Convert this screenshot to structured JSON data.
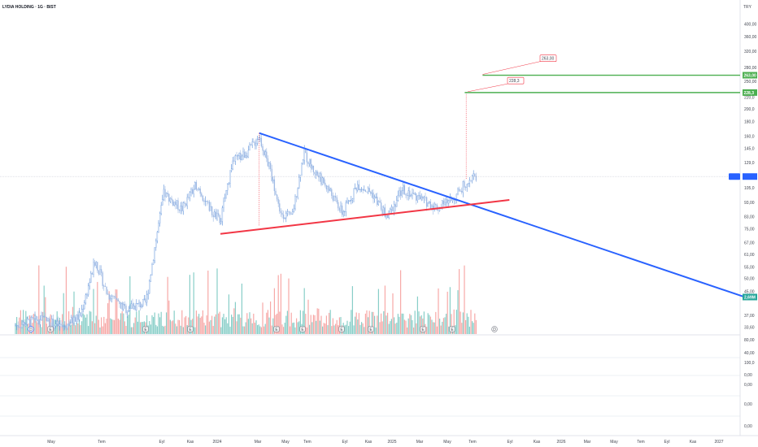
{
  "header": {
    "title": "LYDIA HOLDING · 1G · BIST",
    "currency": "TRY"
  },
  "chart_data": {
    "type": "candlestick",
    "title": "LYDIA HOLDING · 1G · BIST",
    "yscale": "log",
    "y_ticks": [
      "400,00",
      "360,00",
      "320,00",
      "280,00",
      "250,00",
      "220,0",
      "200,0",
      "180,0",
      "160,0",
      "145,0",
      "129,0",
      "105,0",
      "93,00",
      "83,00",
      "75,00",
      "67,00",
      "61,00",
      "55,00",
      "50,00",
      "45,00",
      "37,00",
      "33,60"
    ],
    "x_ticks": [
      "May",
      "Tem",
      "Eyl",
      "Kas",
      "2024",
      "Mar",
      "May",
      "Tem",
      "Eyl",
      "Kas",
      "2025",
      "Mar",
      "May",
      "Tem",
      "Eyl",
      "Kas",
      "2026",
      "Mar",
      "May",
      "Tem",
      "Eyl",
      "Kas",
      "2027"
    ],
    "price_path": [
      {
        "t": 0,
        "v": 34
      },
      {
        "t": 0.09,
        "v": 36
      },
      {
        "t": 0.16,
        "v": 33.6
      },
      {
        "t": 0.22,
        "v": 37
      },
      {
        "t": 0.27,
        "v": 58
      },
      {
        "t": 0.31,
        "v": 44
      },
      {
        "t": 0.37,
        "v": 39
      },
      {
        "t": 0.44,
        "v": 41
      },
      {
        "t": 0.47,
        "v": 65
      },
      {
        "t": 0.5,
        "v": 100
      },
      {
        "t": 0.56,
        "v": 88
      },
      {
        "t": 0.61,
        "v": 108
      },
      {
        "t": 0.66,
        "v": 86
      },
      {
        "t": 0.69,
        "v": 80
      },
      {
        "t": 0.73,
        "v": 130
      },
      {
        "t": 0.78,
        "v": 140
      },
      {
        "t": 0.82,
        "v": 160
      },
      {
        "t": 0.86,
        "v": 118
      },
      {
        "t": 0.89,
        "v": 86
      },
      {
        "t": 0.93,
        "v": 82
      },
      {
        "t": 0.97,
        "v": 140
      },
      {
        "t": 1.0,
        "v": 122
      },
      {
        "t": 1.05,
        "v": 105
      },
      {
        "t": 1.1,
        "v": 85
      },
      {
        "t": 1.15,
        "v": 108
      },
      {
        "t": 1.2,
        "v": 100
      },
      {
        "t": 1.25,
        "v": 82
      },
      {
        "t": 1.3,
        "v": 104
      },
      {
        "t": 1.36,
        "v": 96
      },
      {
        "t": 1.42,
        "v": 89
      },
      {
        "t": 1.48,
        "v": 98
      },
      {
        "t": 1.52,
        "v": 112
      },
      {
        "t": 1.55,
        "v": 115
      }
    ],
    "current_price": "",
    "targets": [
      {
        "name": "263,00",
        "value": 263,
        "color": "#4caf50"
      },
      {
        "name": "228,3",
        "value": 228.3,
        "color": "#4caf50"
      }
    ],
    "trendlines": [
      {
        "name": "descending resistance",
        "color": "#2962ff",
        "from": {
          "t": 0.82,
          "v": 164
        },
        "to": {
          "t": 2.45,
          "v": 43
        }
      },
      {
        "name": "rising support",
        "color": "#f23645",
        "from": {
          "t": 0.69,
          "v": 72
        },
        "to": {
          "t": 1.66,
          "v": 95
        }
      }
    ],
    "volume_label": "2,69M",
    "lower_pane_ticks": [
      "80,00",
      "40,00",
      "100,0",
      "0,00",
      "0,00",
      "0,00",
      "0,00"
    ],
    "event_markers": [
      "D",
      "E",
      "E",
      "E",
      "E",
      "E",
      "E",
      "E",
      "E",
      "E",
      "D"
    ]
  }
}
